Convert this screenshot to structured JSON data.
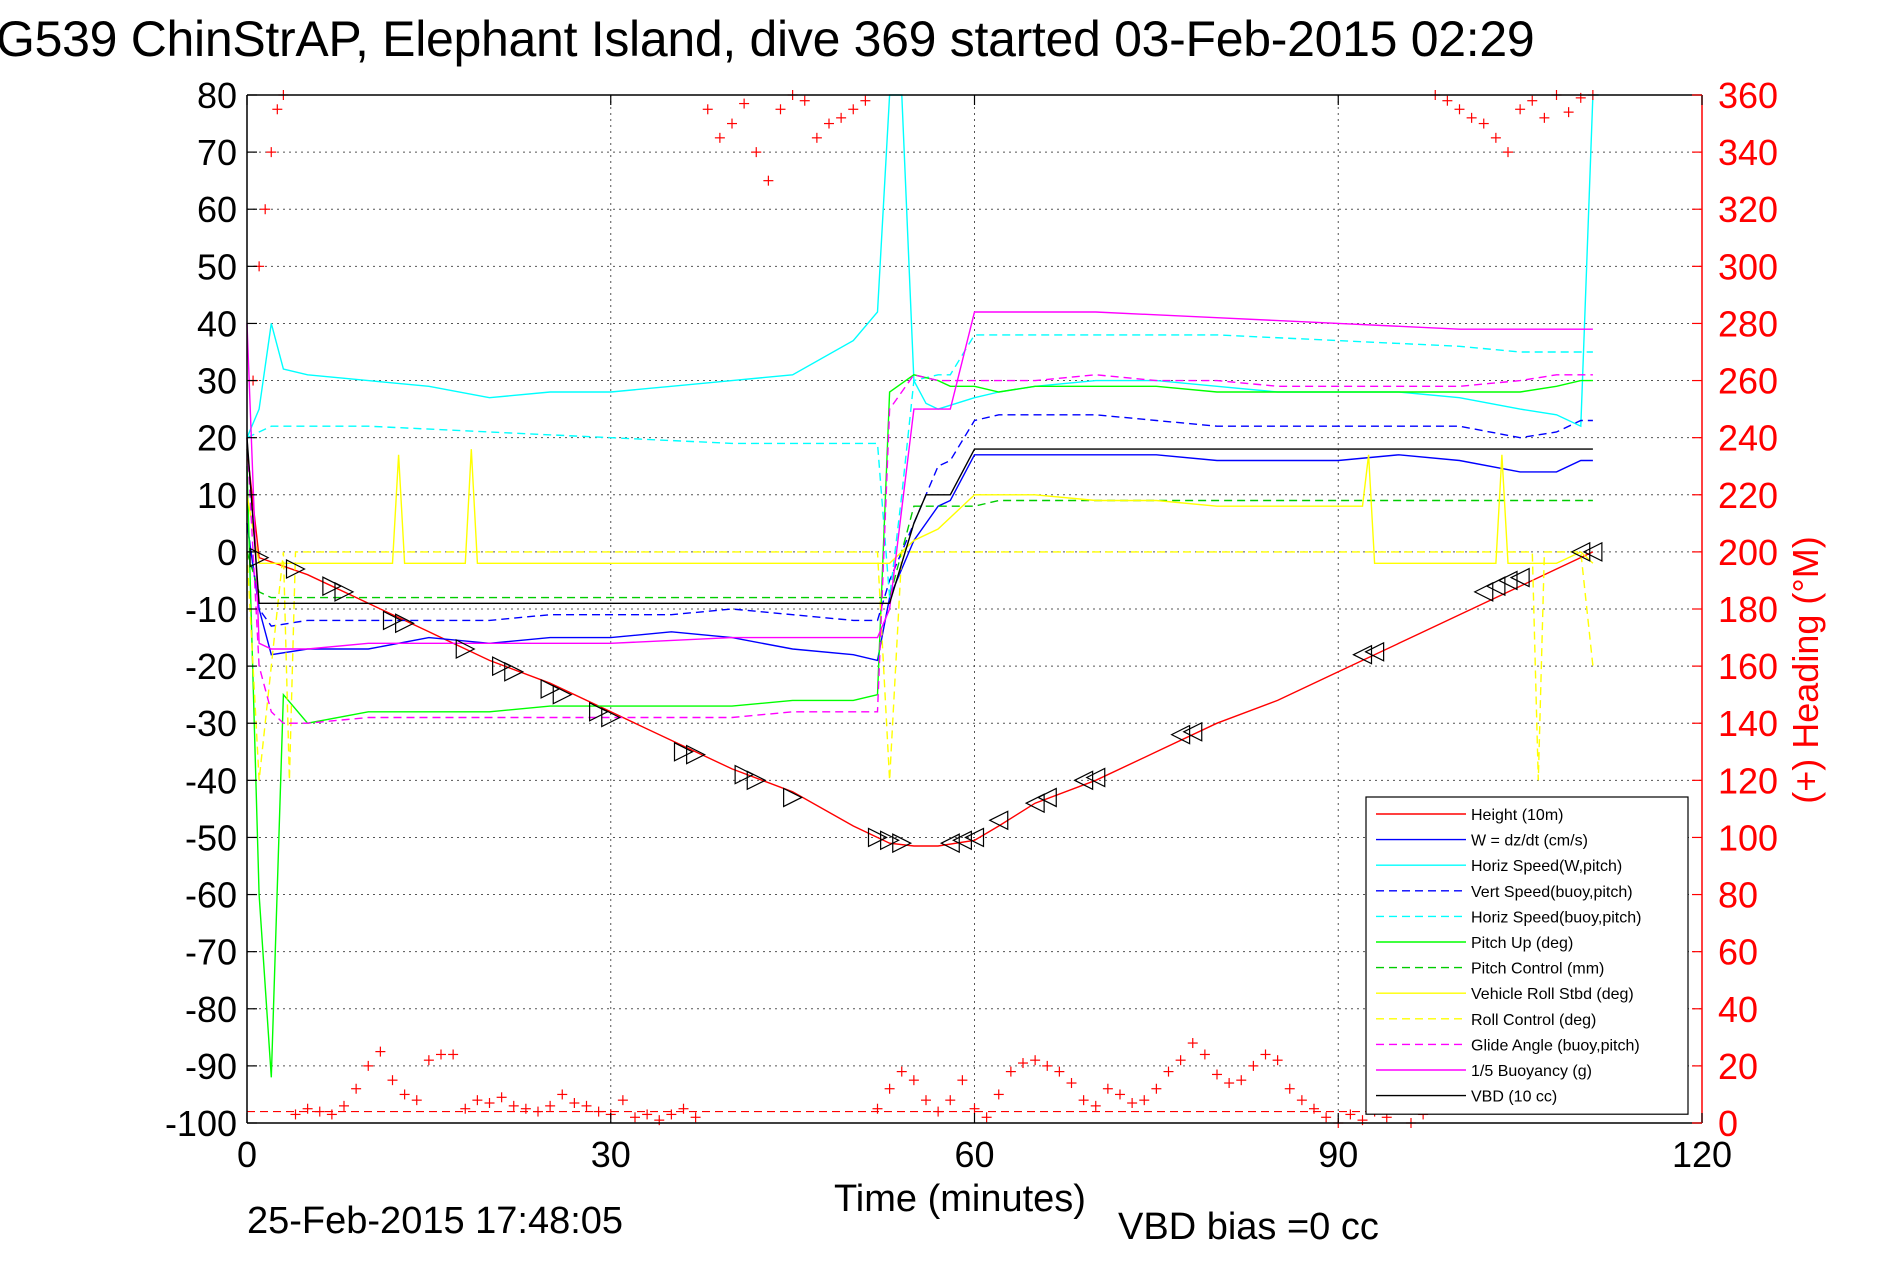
{
  "title": "G539 ChinStrAP, Elephant Island, dive 369 started 03-Feb-2015 02:29",
  "timestamp": "25-Feb-2015 17:48:05",
  "vbd_bias": "VBD bias =0 cc",
  "chart_data": {
    "type": "line",
    "xlabel": "Time (minutes)",
    "ylabel_left": "",
    "ylabel_right": "(+) Heading (°M)",
    "xlim": [
      0,
      120
    ],
    "ylim_left": [
      -100,
      80
    ],
    "ylim_right": [
      0,
      360
    ],
    "xticks": [
      "0",
      "30",
      "60",
      "90",
      "120"
    ],
    "yticks_left": [
      "80",
      "70",
      "60",
      "50",
      "40",
      "30",
      "20",
      "10",
      "0",
      "-10",
      "-20",
      "-30",
      "-40",
      "-50",
      "-60",
      "-70",
      "-80",
      "-90",
      "-100"
    ],
    "yticks_right": [
      "360",
      "340",
      "320",
      "300",
      "280",
      "260",
      "240",
      "220",
      "200",
      "180",
      "160",
      "140",
      "120",
      "100",
      "80",
      "60",
      "40",
      "20",
      "0"
    ],
    "grid": true,
    "legend_position": "bottom-right",
    "colors": {
      "height": "#ff0000",
      "w": "#0000ff",
      "horiz_w": "#00ffff",
      "vert_buoy": "#0000ff",
      "horiz_buoy": "#00ffff",
      "pitch_up": "#00ff00",
      "pitch_control": "#00cc00",
      "roll": "#ffff00",
      "roll_control": "#ffff00",
      "glide": "#ff00ff",
      "buoyancy": "#ff00ff",
      "vbd": "#000000",
      "heading": "#ff0000"
    },
    "series": [
      {
        "name": "Height (10m)",
        "color": "#ff0000",
        "dash": "",
        "x": [
          0,
          1,
          5,
          10,
          15,
          20,
          25,
          30,
          35,
          40,
          45,
          50,
          53,
          55,
          57,
          60,
          62,
          65,
          70,
          75,
          80,
          85,
          90,
          95,
          100,
          105,
          108,
          111
        ],
        "y": [
          18,
          -1,
          -4,
          -9,
          -14,
          -19,
          -23,
          -28,
          -33,
          -38,
          -42,
          -48,
          -51,
          -51.5,
          -51.5,
          -50.5,
          -48,
          -44,
          -40,
          -35,
          -30,
          -26,
          -21,
          -16,
          -11,
          -6,
          -3,
          0
        ]
      },
      {
        "name": "W = dz/dt (cm/s)",
        "color": "#0000ff",
        "dash": "",
        "x": [
          0,
          1,
          2,
          5,
          10,
          15,
          20,
          25,
          30,
          35,
          40,
          45,
          50,
          52,
          53,
          55,
          57,
          58,
          60,
          62,
          65,
          70,
          75,
          80,
          85,
          90,
          95,
          100,
          105,
          108,
          110,
          111
        ],
        "y": [
          5,
          -10,
          -18,
          -17,
          -17,
          -15,
          -16,
          -15,
          -15,
          -14,
          -15,
          -17,
          -18,
          -19,
          -8,
          2,
          8,
          9,
          17,
          17,
          17,
          17,
          17,
          16,
          16,
          16,
          17,
          16,
          14,
          14,
          16,
          16
        ]
      },
      {
        "name": "Horiz Speed(W,pitch)",
        "color": "#00ffff",
        "dash": "",
        "x": [
          0,
          1,
          2,
          3,
          5,
          10,
          15,
          20,
          25,
          30,
          35,
          40,
          45,
          50,
          52,
          53,
          54,
          55,
          56,
          57,
          60,
          62,
          65,
          70,
          75,
          80,
          85,
          90,
          95,
          100,
          105,
          108,
          110,
          111,
          111.5
        ],
        "y": [
          20,
          25,
          40,
          32,
          31,
          30,
          29,
          27,
          28,
          28,
          29,
          30,
          31,
          37,
          42,
          80,
          80,
          30,
          26,
          25,
          27,
          28,
          29,
          30,
          30,
          29,
          28,
          28,
          28,
          27,
          25,
          24,
          22,
          80,
          80
        ]
      },
      {
        "name": "Vert Speed(buoy,pitch)",
        "color": "#0000ff",
        "dash": "8,5",
        "x": [
          0,
          1,
          2,
          5,
          10,
          15,
          20,
          25,
          30,
          35,
          40,
          45,
          50,
          52,
          53,
          55,
          57,
          58,
          60,
          62,
          65,
          70,
          75,
          80,
          85,
          90,
          95,
          100,
          105,
          108,
          110,
          111
        ],
        "y": [
          5,
          -10,
          -13,
          -12,
          -12,
          -12,
          -12,
          -11,
          -11,
          -11,
          -10,
          -11,
          -12,
          -12,
          -5,
          5,
          15,
          16,
          23,
          24,
          24,
          24,
          23,
          22,
          22,
          22,
          22,
          22,
          20,
          21,
          23,
          23
        ]
      },
      {
        "name": "Horiz Speed(buoy,pitch)",
        "color": "#00ffff",
        "dash": "8,5",
        "x": [
          0,
          1,
          2,
          5,
          10,
          20,
          30,
          40,
          50,
          52,
          53,
          54,
          55,
          57,
          58,
          60,
          65,
          70,
          80,
          90,
          100,
          105,
          110,
          111
        ],
        "y": [
          20,
          21,
          22,
          22,
          22,
          21,
          20,
          19,
          19,
          19,
          -8,
          10,
          30,
          31,
          31,
          38,
          38,
          38,
          38,
          37,
          36,
          35,
          35,
          35
        ]
      },
      {
        "name": "Pitch Up (deg)",
        "color": "#00ff00",
        "dash": "",
        "x": [
          0,
          1,
          2,
          3,
          5,
          10,
          15,
          20,
          25,
          30,
          35,
          40,
          45,
          50,
          52,
          53,
          55,
          57,
          58,
          60,
          62,
          65,
          70,
          75,
          80,
          85,
          90,
          95,
          100,
          105,
          108,
          110,
          111
        ],
        "y": [
          15,
          -60,
          -92,
          -25,
          -30,
          -28,
          -28,
          -28,
          -27,
          -27,
          -27,
          -27,
          -26,
          -26,
          -25,
          28,
          31,
          30,
          29,
          29,
          28,
          29,
          29,
          29,
          28,
          28,
          28,
          28,
          28,
          28,
          29,
          30,
          30
        ]
      },
      {
        "name": "Pitch Control (mm)",
        "color": "#00cc00",
        "dash": "8,5",
        "x": [
          0,
          1,
          2,
          5,
          10,
          20,
          30,
          40,
          50,
          52,
          53,
          55,
          57,
          58,
          60,
          62,
          70,
          80,
          90,
          100,
          110,
          111
        ],
        "y": [
          0,
          -7,
          -8,
          -8,
          -8,
          -8,
          -8,
          -8,
          -8,
          -8,
          -8,
          8,
          8,
          8,
          8,
          9,
          9,
          9,
          9,
          9,
          9,
          9
        ]
      },
      {
        "name": "Vehicle Roll Stbd (deg)",
        "color": "#ffff00",
        "dash": "",
        "x": [
          0,
          1,
          2,
          5,
          10,
          12,
          12.5,
          13,
          18,
          18.5,
          19,
          25,
          30,
          35,
          40,
          45,
          50,
          52,
          53,
          55,
          57,
          60,
          61,
          62,
          65,
          70,
          75,
          80,
          85,
          90,
          92,
          92.5,
          93,
          100,
          103,
          103.5,
          104,
          108,
          110,
          111
        ],
        "y": [
          10,
          -2,
          -2,
          -2,
          -2,
          -2,
          17,
          -2,
          -2,
          18,
          -2,
          -2,
          -2,
          -2,
          -2,
          -2,
          -2,
          -2,
          -2,
          2,
          4,
          10,
          10,
          10,
          10,
          9,
          9,
          8,
          8,
          8,
          8,
          17,
          -2,
          -2,
          -2,
          17,
          -2,
          -2,
          0,
          -2
        ]
      },
      {
        "name": "Roll Control (deg)",
        "color": "#ffff00",
        "dash": "8,5",
        "x": [
          0,
          1,
          2,
          3,
          3.5,
          4,
          10,
          20,
          30,
          40,
          50,
          52,
          53,
          54,
          55,
          60,
          70,
          80,
          90,
          100,
          105,
          106,
          106.5,
          107,
          110,
          111
        ],
        "y": [
          0,
          -40,
          -20,
          0,
          -40,
          0,
          0,
          0,
          0,
          0,
          0,
          0,
          -40,
          0,
          0,
          0,
          0,
          0,
          0,
          0,
          0,
          0,
          -40,
          0,
          0,
          -20
        ]
      },
      {
        "name": "Glide Angle (buoy,pitch)",
        "color": "#ff00ff",
        "dash": "8,5",
        "x": [
          0,
          1,
          2,
          3,
          5,
          10,
          15,
          20,
          25,
          30,
          35,
          40,
          45,
          50,
          52,
          53,
          55,
          57,
          58,
          60,
          62,
          65,
          70,
          75,
          80,
          85,
          90,
          95,
          100,
          105,
          108,
          110,
          111
        ],
        "y": [
          20,
          -20,
          -28,
          -30,
          -30,
          -29,
          -29,
          -29,
          -29,
          -29,
          -29,
          -29,
          -28,
          -28,
          -28,
          25,
          31,
          30,
          30,
          30,
          30,
          30,
          31,
          30,
          30,
          29,
          29,
          29,
          29,
          30,
          31,
          31,
          31
        ]
      },
      {
        "name": "1/5 Buoyancy (g)",
        "color": "#ff00ff",
        "dash": "",
        "x": [
          0,
          1,
          2,
          5,
          10,
          20,
          30,
          40,
          50,
          52,
          53,
          55,
          56,
          58,
          60,
          61,
          70,
          80,
          90,
          100,
          110,
          111
        ],
        "y": [
          40,
          -16,
          -17,
          -17,
          -16,
          -16,
          -16,
          -15,
          -15,
          -15,
          -10,
          25,
          25,
          25,
          42,
          42,
          42,
          41,
          40,
          39,
          39,
          39
        ]
      },
      {
        "name": "VBD (10 cc)",
        "color": "#000000",
        "dash": "",
        "x": [
          0,
          1,
          2,
          5,
          10,
          20,
          30,
          40,
          50,
          52,
          53,
          55,
          56,
          58,
          60,
          61,
          70,
          80,
          90,
          100,
          110,
          111
        ],
        "y": [
          20,
          -9,
          -9,
          -9,
          -9,
          -9,
          -9,
          -9,
          -9,
          -9,
          -9,
          5,
          10,
          10,
          18,
          18,
          18,
          18,
          18,
          18,
          18,
          18
        ]
      }
    ],
    "height_markers": [
      {
        "x": 1,
        "y": -1
      },
      {
        "x": 4,
        "y": -3
      },
      {
        "x": 7,
        "y": -6
      },
      {
        "x": 8,
        "y": -7
      },
      {
        "x": 12,
        "y": -12
      },
      {
        "x": 13,
        "y": -12.5
      },
      {
        "x": 18,
        "y": -17
      },
      {
        "x": 21,
        "y": -20
      },
      {
        "x": 22,
        "y": -21
      },
      {
        "x": 25,
        "y": -24
      },
      {
        "x": 26,
        "y": -25
      },
      {
        "x": 29,
        "y": -28
      },
      {
        "x": 30,
        "y": -29
      },
      {
        "x": 36,
        "y": -35
      },
      {
        "x": 37,
        "y": -35.5
      },
      {
        "x": 41,
        "y": -39
      },
      {
        "x": 42,
        "y": -40
      },
      {
        "x": 45,
        "y": -43
      },
      {
        "x": 52,
        "y": -50
      },
      {
        "x": 53,
        "y": -50.5
      },
      {
        "x": 54,
        "y": -51
      },
      {
        "x": 58,
        "y": -51
      },
      {
        "x": 59,
        "y": -50.5
      },
      {
        "x": 60,
        "y": -50
      },
      {
        "x": 62,
        "y": -47
      },
      {
        "x": 65,
        "y": -44
      },
      {
        "x": 66,
        "y": -43
      },
      {
        "x": 69,
        "y": -40
      },
      {
        "x": 70,
        "y": -39.5
      },
      {
        "x": 77,
        "y": -32
      },
      {
        "x": 78,
        "y": -31.5
      },
      {
        "x": 92,
        "y": -18
      },
      {
        "x": 93,
        "y": -17.5
      },
      {
        "x": 102,
        "y": -7
      },
      {
        "x": 103,
        "y": -6
      },
      {
        "x": 104,
        "y": -5
      },
      {
        "x": 105,
        "y": -4.5
      },
      {
        "x": 110,
        "y": 0
      },
      {
        "x": 111,
        "y": 0
      }
    ],
    "heading_series": {
      "name": "(+) Heading",
      "x": [
        0.5,
        1,
        1.5,
        2,
        2.5,
        3,
        4,
        5,
        6,
        7,
        8,
        9,
        10,
        11,
        12,
        13,
        14,
        15,
        16,
        17,
        18,
        19,
        20,
        21,
        22,
        23,
        24,
        25,
        26,
        27,
        28,
        29,
        30,
        31,
        32,
        33,
        34,
        35,
        36,
        37,
        38,
        39,
        40,
        41,
        42,
        43,
        44,
        45,
        46,
        47,
        48,
        49,
        50,
        51,
        52,
        53,
        54,
        55,
        56,
        57,
        58,
        59,
        60,
        61,
        62,
        63,
        64,
        65,
        66,
        67,
        68,
        69,
        70,
        71,
        72,
        73,
        74,
        75,
        76,
        77,
        78,
        79,
        80,
        81,
        82,
        83,
        84,
        85,
        86,
        87,
        88,
        89,
        90,
        91,
        92,
        93,
        94,
        95,
        96,
        97,
        98,
        99,
        100,
        101,
        102,
        103,
        104,
        105,
        106,
        107,
        108,
        109,
        110,
        111
      ],
      "y": [
        260,
        300,
        320,
        340,
        355,
        360,
        3,
        5,
        4,
        3,
        6,
        12,
        20,
        25,
        15,
        10,
        8,
        22,
        24,
        24,
        5,
        8,
        7,
        9,
        6,
        5,
        4,
        6,
        10,
        7,
        6,
        4,
        3,
        8,
        2,
        3,
        1,
        3,
        5,
        2,
        355,
        345,
        350,
        357,
        340,
        330,
        355,
        360,
        358,
        345,
        350,
        352,
        355,
        358,
        5,
        12,
        18,
        15,
        8,
        4,
        8,
        15,
        5,
        2,
        10,
        18,
        21,
        22,
        20,
        18,
        14,
        8,
        6,
        12,
        10,
        7,
        8,
        12,
        18,
        22,
        28,
        24,
        17,
        14,
        15,
        20,
        24,
        22,
        12,
        8,
        5,
        2,
        0,
        3,
        1,
        4,
        2,
        5,
        0,
        3,
        360,
        358,
        355,
        352,
        350,
        345,
        340,
        355,
        358,
        352,
        360,
        354,
        359,
        360
      ]
    },
    "heading_ref": 4
  }
}
